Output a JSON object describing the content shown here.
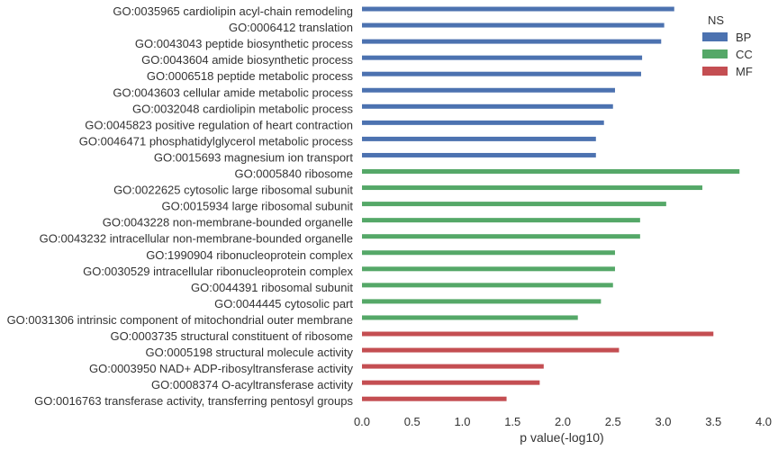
{
  "chart_data": {
    "type": "bar",
    "orientation": "horizontal",
    "xlabel": "p value(-log10)",
    "xlim": [
      0,
      4
    ],
    "xticks": [
      "0.0",
      "0.5",
      "1.0",
      "1.5",
      "2.0",
      "2.5",
      "3.0",
      "3.5",
      "4.0"
    ],
    "grid": false,
    "legend": {
      "title": "NS",
      "position": "top-right",
      "entries": [
        {
          "name": "BP",
          "color": "#4c72b0"
        },
        {
          "name": "CC",
          "color": "#55a868"
        },
        {
          "name": "MF",
          "color": "#c44e52"
        }
      ]
    },
    "categories": [
      "GO:0035965 cardiolipin acyl-chain remodeling",
      "GO:0006412 translation",
      "GO:0043043 peptide biosynthetic process",
      "GO:0043604 amide biosynthetic process",
      "GO:0006518 peptide metabolic process",
      "GO:0043603 cellular amide metabolic process",
      "GO:0032048 cardiolipin metabolic process",
      "GO:0045823 positive regulation of heart contraction",
      "GO:0046471 phosphatidylglycerol metabolic process",
      "GO:0015693 magnesium ion transport",
      "GO:0005840 ribosome",
      "GO:0022625 cytosolic large ribosomal subunit",
      "GO:0015934 large ribosomal subunit",
      "GO:0043228 non-membrane-bounded organelle",
      "GO:0043232 intracellular non-membrane-bounded organelle",
      "GO:1990904 ribonucleoprotein complex",
      "GO:0030529 intracellular ribonucleoprotein complex",
      "GO:0044391 ribosomal subunit",
      "GO:0044445 cytosolic part",
      "GO:0031306 intrinsic component of mitochondrial outer membrane",
      "GO:0003735 structural constituent of ribosome",
      "GO:0005198 structural molecule activity",
      "GO:0003950 NAD+ ADP-ribosyltransferase activity",
      "GO:0008374 O-acyltransferase activity",
      "GO:0016763 transferase activity, transferring pentosyl groups"
    ],
    "groups": [
      "BP",
      "BP",
      "BP",
      "BP",
      "BP",
      "BP",
      "BP",
      "BP",
      "BP",
      "BP",
      "CC",
      "CC",
      "CC",
      "CC",
      "CC",
      "CC",
      "CC",
      "CC",
      "CC",
      "CC",
      "MF",
      "MF",
      "MF",
      "MF",
      "MF"
    ],
    "values": [
      3.11,
      3.01,
      2.98,
      2.79,
      2.78,
      2.52,
      2.5,
      2.41,
      2.33,
      2.33,
      3.76,
      3.39,
      3.03,
      2.77,
      2.77,
      2.52,
      2.52,
      2.5,
      2.38,
      2.15,
      3.5,
      2.56,
      1.81,
      1.77,
      1.44
    ]
  }
}
